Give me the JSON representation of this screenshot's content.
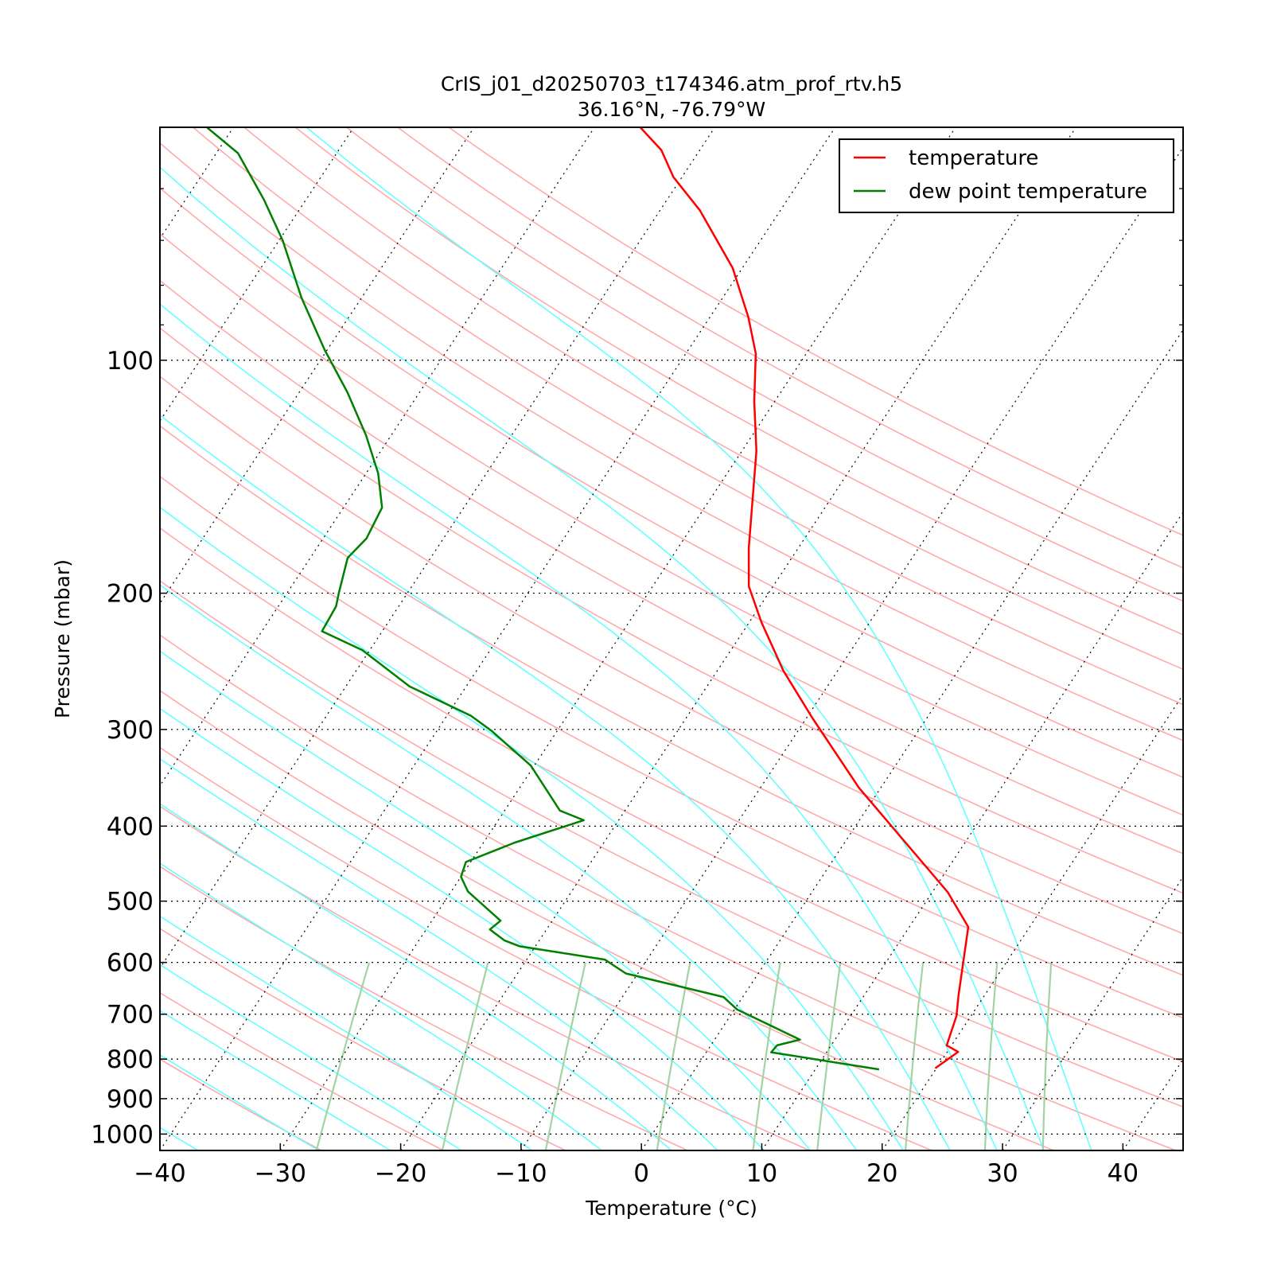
{
  "chart_data": {
    "type": "line",
    "title": "CrIS_j01_d20250703_t174346.atm_prof_rtv.h5",
    "subtitle": "36.16$^\\circ$N, -76.79$^\\circ$W",
    "subtitle_display": "36.16°N, -76.79°W",
    "xlabel": "Temperature ($^\\circ$C)",
    "xlabel_display": "Temperature (°C)",
    "ylabel": "Pressure (mbar)",
    "xlim": [
      -40,
      45
    ],
    "ylim": [
      1050,
      50
    ],
    "y_scale": "log",
    "skew": "skew-T",
    "x_ticks": [
      -40,
      -30,
      -20,
      -10,
      0,
      10,
      20,
      30,
      40
    ],
    "x_tick_labels": [
      "−40",
      "−30",
      "−20",
      "−10",
      "0",
      "10",
      "20",
      "30",
      "40"
    ],
    "y_ticks": [
      100,
      200,
      300,
      400,
      500,
      600,
      700,
      800,
      900,
      1000
    ],
    "y_tick_labels": [
      "100",
      "200",
      "300",
      "400",
      "500",
      "600",
      "700",
      "800",
      "900",
      "1000"
    ],
    "grid": "dotted isobars and isotherms",
    "legend_position": "top-right",
    "series": [
      {
        "name": "temperature",
        "color": "#ff0000",
        "points": [
          [
            19.9,
            822
          ],
          [
            20.9,
            783
          ],
          [
            19.6,
            768
          ],
          [
            18.8,
            704
          ],
          [
            17.8,
            660
          ],
          [
            14.9,
            540
          ],
          [
            11.3,
            487
          ],
          [
            -1.8,
            357
          ],
          [
            -9.5,
            290
          ],
          [
            -14.5,
            252
          ],
          [
            -19.0,
            218
          ],
          [
            -22.0,
            196
          ],
          [
            -24.1,
            175
          ],
          [
            -26.6,
            150
          ],
          [
            -28.8,
            131
          ],
          [
            -31.7,
            113
          ],
          [
            -34.2,
            98
          ],
          [
            -36.8,
            88
          ],
          [
            -40.8,
            76
          ],
          [
            -46.7,
            64
          ],
          [
            -50.7,
            58
          ],
          [
            -53.2,
            53.5
          ],
          [
            -56.2,
            50
          ]
        ]
      },
      {
        "name": "dew point temperature",
        "color": "#008000",
        "points": [
          [
            15.3,
            825
          ],
          [
            5.4,
            784
          ],
          [
            5.5,
            768
          ],
          [
            7.1,
            755
          ],
          [
            0.2,
            690
          ],
          [
            -1.6,
            665
          ],
          [
            -11.0,
            620
          ],
          [
            -13.5,
            595
          ],
          [
            -21.3,
            572
          ],
          [
            -22.9,
            562
          ],
          [
            -24.7,
            544
          ],
          [
            -24.3,
            530
          ],
          [
            -28.6,
            486
          ],
          [
            -30.0,
            465
          ],
          [
            -30.4,
            445
          ],
          [
            -27.4,
            420
          ],
          [
            -22.9,
            393
          ],
          [
            -25.4,
            382
          ],
          [
            -30.3,
            334
          ],
          [
            -35.5,
            301
          ],
          [
            -38.0,
            288
          ],
          [
            -44.7,
            264
          ],
          [
            -50.6,
            237
          ],
          [
            -55.0,
            224
          ],
          [
            -55.2,
            208
          ],
          [
            -55.7,
            200
          ],
          [
            -56.9,
            180
          ],
          [
            -56.4,
            170
          ],
          [
            -56.8,
            155
          ],
          [
            -59.0,
            140
          ],
          [
            -62.1,
            125
          ],
          [
            -66.0,
            110
          ],
          [
            -70.2,
            97
          ],
          [
            -75.0,
            83
          ],
          [
            -79.7,
            70
          ],
          [
            -83.5,
            62
          ],
          [
            -88.2,
            54
          ],
          [
            -92.2,
            50
          ]
        ]
      }
    ],
    "legend": [
      {
        "label": "temperature",
        "color": "#ff0000"
      },
      {
        "label": "dew point temperature",
        "color": "#008000"
      }
    ],
    "background_lines": {
      "dry_adiabats": {
        "color": "#ffaaaa",
        "theta_C": [
          -30,
          -20,
          -10,
          0,
          10,
          20,
          30,
          40,
          50,
          60,
          70,
          80,
          90,
          100,
          110,
          120,
          130,
          140,
          150,
          160,
          170,
          180,
          190,
          200
        ]
      },
      "moist_adiabats": {
        "color": "#66ffff",
        "theta_w_C": [
          -40,
          -30,
          -24,
          -18,
          -12,
          -6,
          0,
          4,
          8,
          12,
          16,
          20,
          24,
          28,
          32,
          36
        ]
      },
      "mixing_ratio": {
        "color": "#a3d3a3",
        "w_gkg": [
          0.4,
          1,
          2,
          4,
          7,
          10,
          16,
          24,
          32
        ]
      }
    }
  }
}
